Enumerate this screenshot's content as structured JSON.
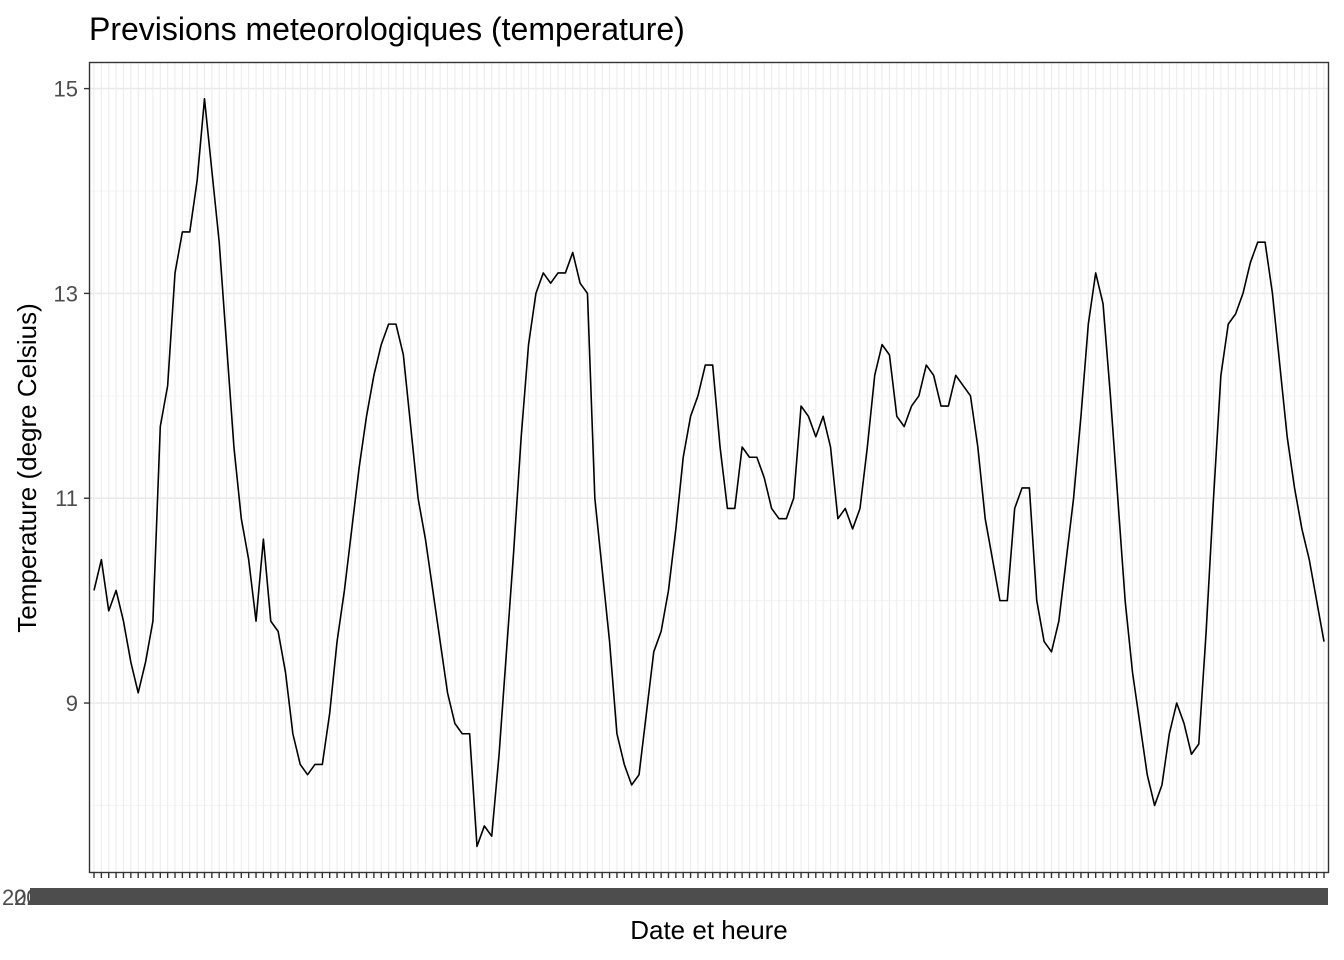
{
  "chart_data": {
    "type": "line",
    "title": "Previsions meteorologiques (temperature)",
    "xlabel": "Date et heure",
    "ylabel": "Temperature (degre Celsius)",
    "ylim": [
      7.35,
      15.25
    ],
    "yticks": [
      9,
      11,
      13,
      15
    ],
    "ytick_labels": [
      "9",
      "11",
      "13",
      "15"
    ],
    "grid": true,
    "legend": "none",
    "x_tick_labels_note": "x tick labels overprinted and illegible in original",
    "x_tick_label_prefix": "202",
    "line_color": "#000000",
    "panel_border_color": "#333333",
    "grid_major_color": "#ebebeb",
    "grid_minor_color": "#f3f3f3",
    "series": [
      {
        "values": [
          10.1,
          10.4,
          9.9,
          10.1,
          9.8,
          9.4,
          9.1,
          9.4,
          9.8,
          11.7,
          12.1,
          13.2,
          13.6,
          13.6,
          14.1,
          14.9,
          14.2,
          13.5,
          12.5,
          11.5,
          10.8,
          10.4,
          9.8,
          10.6,
          9.8,
          9.7,
          9.3,
          8.7,
          8.4,
          8.3,
          8.4,
          8.4,
          8.9,
          9.6,
          10.1,
          10.7,
          11.3,
          11.8,
          12.2,
          12.5,
          12.7,
          12.7,
          12.4,
          11.7,
          11.0,
          10.6,
          10.1,
          9.6,
          9.1,
          8.8,
          8.7,
          8.7,
          7.6,
          7.8,
          7.7,
          8.5,
          9.5,
          10.5,
          11.6,
          12.5,
          13.0,
          13.2,
          13.1,
          13.2,
          13.2,
          13.4,
          13.1,
          13.0,
          11.0,
          10.3,
          9.6,
          8.7,
          8.4,
          8.2,
          8.3,
          8.9,
          9.5,
          9.7,
          10.1,
          10.7,
          11.4,
          11.8,
          12.0,
          12.3,
          12.3,
          11.5,
          10.9,
          10.9,
          11.5,
          11.4,
          11.4,
          11.2,
          10.9,
          10.8,
          10.8,
          11.0,
          11.9,
          11.8,
          11.6,
          11.8,
          11.5,
          10.8,
          10.9,
          10.7,
          10.9,
          11.5,
          12.2,
          12.5,
          12.4,
          11.8,
          11.7,
          11.9,
          12.0,
          12.3,
          12.2,
          11.9,
          11.9,
          12.2,
          12.1,
          12.0,
          11.5,
          10.8,
          10.4,
          10.0,
          10.0,
          10.9,
          11.1,
          11.1,
          10.0,
          9.6,
          9.5,
          9.8,
          10.4,
          11.0,
          11.8,
          12.7,
          13.2,
          12.9,
          12.0,
          11.0,
          10.0,
          9.3,
          8.8,
          8.3,
          8.0,
          8.2,
          8.7,
          9.0,
          8.8,
          8.5,
          8.6,
          9.7,
          11.0,
          12.2,
          12.7,
          12.8,
          13.0,
          13.3,
          13.5,
          13.5,
          13.0,
          12.3,
          11.6,
          11.1,
          10.7,
          10.4,
          10.0,
          9.6
        ]
      }
    ]
  }
}
